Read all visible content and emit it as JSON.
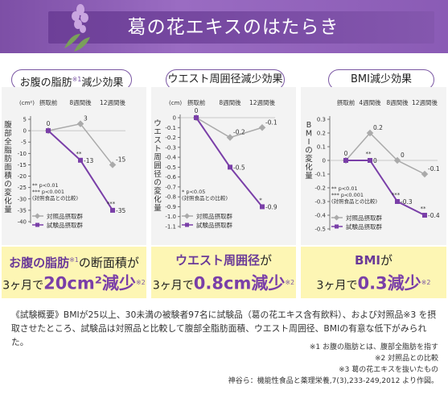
{
  "header": {
    "title": "葛の花エキスのはたらき"
  },
  "charts": [
    {
      "tab_label": "お腹の脂肪",
      "tab_sup": "※1",
      "tab_suffix": "減少効果",
      "yaxis_title": "腹部全脂肪面積の変化量",
      "unit": "(cm²)",
      "time_labels": [
        "摂取前",
        "8週間後",
        "12週間後"
      ],
      "chart_data": {
        "type": "line",
        "categories": [
          "摂取前",
          "8週間後",
          "12週間後"
        ],
        "ylim": [
          -40,
          5
        ],
        "yticks": [
          5,
          0,
          -5,
          -10,
          -15,
          -20,
          -25,
          -30,
          -35,
          -40
        ],
        "series": [
          {
            "name": "対照品摂取群",
            "values": [
              0,
              3,
              -15
            ],
            "labels": [
              "0",
              "3",
              "-15"
            ],
            "color": "#aaaaaa"
          },
          {
            "name": "試験品摂取群",
            "values": [
              0,
              -13,
              -35
            ],
            "labels": [
              "0",
              "-13",
              "-35"
            ],
            "color": "#7a3fa8"
          }
        ],
        "significance": [
          "",
          "**",
          "***"
        ]
      },
      "note_lines": [
        "** p<0.01",
        "*** p<0.001",
        "(対照食品との比較)"
      ],
      "legend": [
        "対照品摂取群",
        "試験品摂取群"
      ],
      "callout": {
        "l1a": "お腹の脂肪",
        "l1sup": "※1",
        "l1b": "の断面積が",
        "l2a": "3ヶ月で",
        "l2big": "20cm²減少",
        "l2sup": "※2"
      }
    },
    {
      "tab_label": "ウエスト周囲径減少効果",
      "tab_sup": "",
      "tab_suffix": "",
      "yaxis_title": "ウエスト周囲径の変化量",
      "unit": "(cm)",
      "time_labels": [
        "摂取前",
        "8週間後",
        "12週間後"
      ],
      "chart_data": {
        "type": "line",
        "categories": [
          "摂取前",
          "8週間後",
          "12週間後"
        ],
        "ylim": [
          -1.1,
          0
        ],
        "yticks": [
          0,
          -0.1,
          -0.2,
          -0.3,
          -0.4,
          -0.5,
          -0.6,
          -0.7,
          -0.8,
          -0.9,
          -1.0,
          -1.1
        ],
        "series": [
          {
            "name": "対照品摂取群",
            "values": [
              0,
              -0.2,
              -0.1
            ],
            "labels": [
              "0",
              "-0.2",
              "-0.1"
            ],
            "color": "#aaaaaa"
          },
          {
            "name": "試験品摂取群",
            "values": [
              0,
              -0.5,
              -0.9
            ],
            "labels": [
              "0",
              "-0.5",
              "-0.9"
            ],
            "color": "#7a3fa8"
          }
        ],
        "significance": [
          "",
          "",
          "*"
        ]
      },
      "note_lines": [
        "* p<0.05",
        "(対照食品との比較)"
      ],
      "legend": [
        "対照品摂取群",
        "試験品摂取群"
      ],
      "callout": {
        "l1a": "ウエスト周囲径",
        "l1sup": "",
        "l1b": "が",
        "l2a": "3ヶ月で",
        "l2big": "0.8cm減少",
        "l2sup": "※2"
      }
    },
    {
      "tab_label": "BMI減少効果",
      "tab_sup": "",
      "tab_suffix": "",
      "yaxis_title": "BMIの変化量",
      "unit": "",
      "time_labels": [
        "摂取前",
        "4週間後",
        "8週間後",
        "12週間後"
      ],
      "chart_data": {
        "type": "line",
        "categories": [
          "摂取前",
          "4週間後",
          "8週間後",
          "12週間後"
        ],
        "ylim": [
          -0.5,
          0.3
        ],
        "yticks": [
          0.3,
          0.2,
          0.1,
          0,
          -0.1,
          -0.2,
          -0.3,
          -0.4,
          -0.5
        ],
        "series": [
          {
            "name": "対照品摂取群",
            "values": [
              0,
              0.2,
              0,
              -0.1
            ],
            "labels": [
              "0",
              "0.2",
              "0",
              "-0.1"
            ],
            "color": "#aaaaaa"
          },
          {
            "name": "試験品摂取群",
            "values": [
              0,
              0,
              -0.3,
              -0.4
            ],
            "labels": [
              "0",
              "0",
              "-0.3",
              "-0.4"
            ],
            "color": "#7a3fa8"
          }
        ],
        "significance": [
          "",
          "**",
          "***",
          "**"
        ]
      },
      "note_lines": [
        "** p<0.01",
        "*** p<0.001",
        "(対照食品との比較)"
      ],
      "legend": [
        "対照品摂取群",
        "試験品摂取群"
      ],
      "callout": {
        "l1a": "BMI",
        "l1sup": "",
        "l1b": "が",
        "l2a": "3ヶ月で",
        "l2big": "0.3減少",
        "l2sup": "※2"
      }
    }
  ],
  "summary": "《試験概要》BMIが25以上、30未満の被験者97名に試験品（葛の花エキス含有飲料）、および対照品※3 を摂取させたところ、試験品は対照品と比較して腹部全脂肪面積、ウエスト周囲径、BMIの有意な低下がみられた。",
  "footnotes": [
    "※1 お腹の脂肪とは、腹部全脂肪を指す",
    "※2 対照品との比較",
    "※3 葛の花エキスを抜いたもの",
    "神谷ら：機能性食品と薬理栄養,7(3),233-249,2012 より作図。"
  ]
}
